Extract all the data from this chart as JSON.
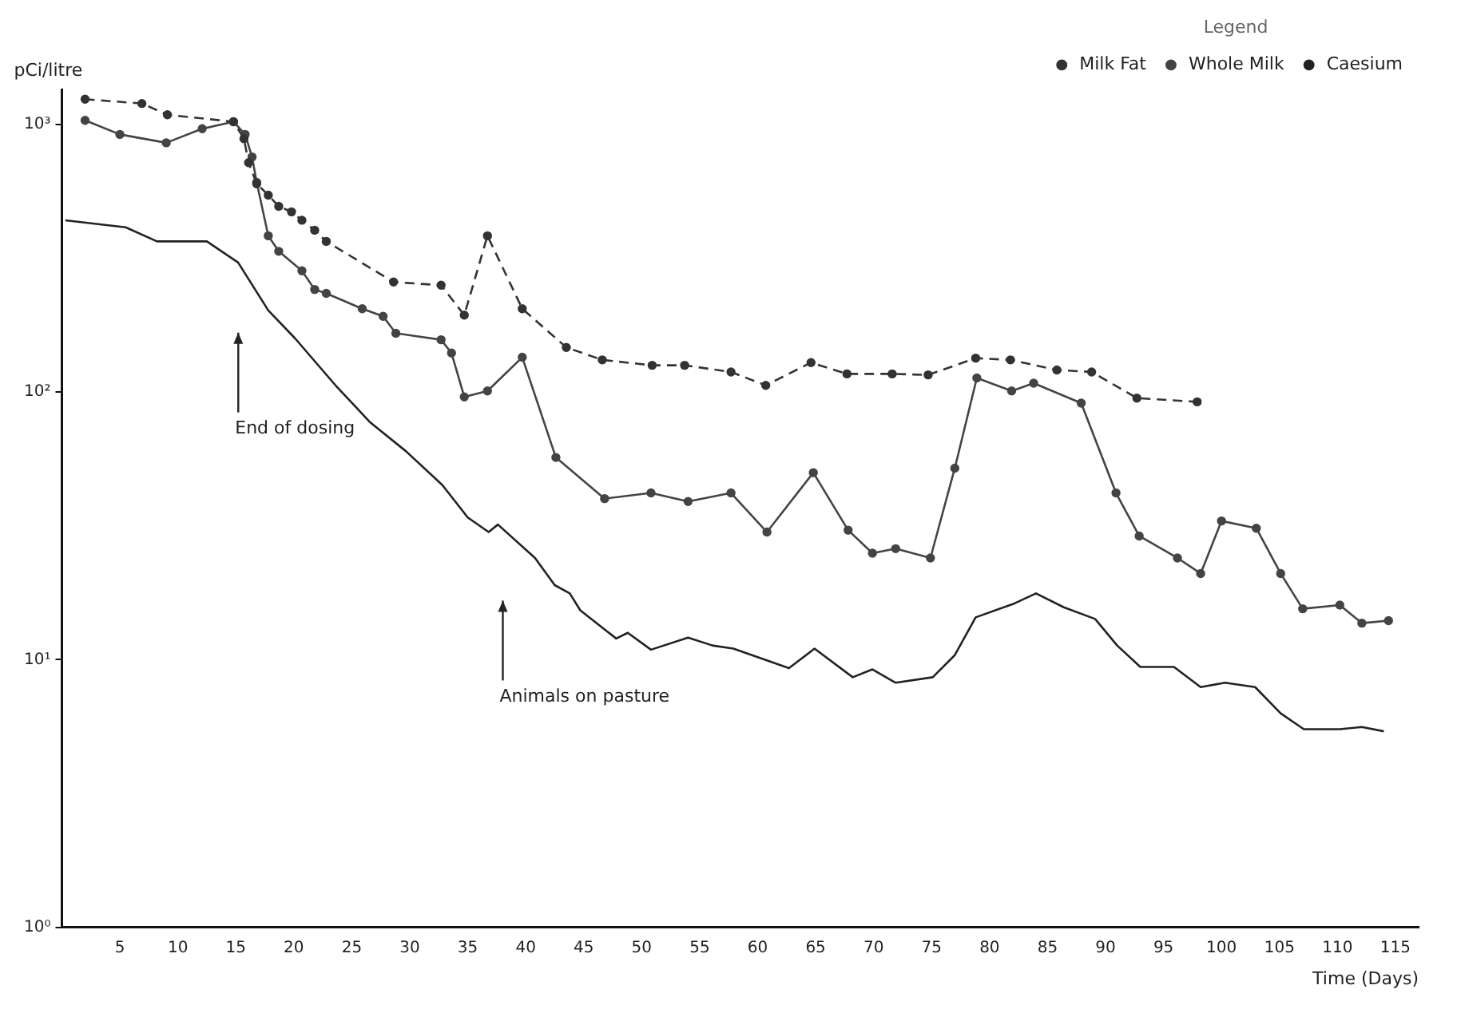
{
  "chart_data": {
    "type": "line",
    "xlabel": "Time (Days)",
    "ylabel": "pCi/litre",
    "legend_title": "Legend",
    "legend": "top",
    "log": "y",
    "grid": false,
    "xlim": [
      0,
      117
    ],
    "xticks": [
      5,
      10,
      15,
      20,
      25,
      30,
      35,
      40,
      45,
      50,
      55,
      60,
      65,
      70,
      75,
      80,
      85,
      90,
      95,
      100,
      105,
      110,
      115
    ],
    "ylim": [
      1,
      1350
    ],
    "yticks": [
      {
        "value": 1,
        "label": "10⁰"
      },
      {
        "value": 10,
        "label": "10¹"
      },
      {
        "value": 100,
        "label": "10²"
      },
      {
        "value": 1000,
        "label": "10³"
      }
    ],
    "annotations": [
      "End of dosing",
      "Animals on pasture"
    ],
    "series": [
      {
        "name": "Milk Fat",
        "color": "#333333",
        "line_style": "dashed",
        "marker": "circle",
        "x": [
          2.0,
          6.9,
          9.1,
          14.8,
          15.7,
          16.1,
          16.8,
          17.8,
          18.7,
          19.8,
          20.7,
          21.8,
          22.8,
          28.6,
          32.7,
          34.7,
          36.7,
          39.7,
          43.5,
          46.6,
          50.9,
          53.7,
          57.7,
          60.7,
          64.6,
          67.7,
          71.6,
          74.7,
          78.8,
          81.8,
          85.8,
          88.8,
          92.7,
          97.9
        ],
        "values": [
          1244,
          1199,
          1088,
          1025,
          886,
          721,
          601,
          545,
          495,
          472,
          439,
          403,
          366,
          258,
          251,
          194,
          384,
          205,
          147,
          132,
          126,
          126,
          119,
          106,
          129,
          117,
          117,
          116,
          134,
          132,
          121,
          119,
          95,
          92
        ]
      },
      {
        "name": "Whole Milk",
        "color": "#444444",
        "line_style": "solid",
        "marker": "circle",
        "x": [
          2.0,
          5.0,
          9.0,
          12.1,
          14.8,
          15.8,
          16.4,
          16.8,
          17.8,
          18.7,
          20.7,
          21.8,
          22.8,
          25.9,
          27.7,
          28.8,
          32.7,
          33.6,
          34.7,
          36.7,
          39.7,
          42.6,
          46.8,
          50.8,
          54.0,
          57.7,
          60.8,
          64.8,
          67.8,
          69.9,
          71.9,
          74.9,
          77.0,
          78.9,
          81.9,
          83.8,
          87.9,
          90.9,
          92.9,
          96.2,
          98.2,
          100.0,
          103.0,
          105.1,
          107.0,
          110.2,
          112.1,
          114.4
        ],
        "values": [
          1037,
          919,
          855,
          965,
          1025,
          919,
          757,
          608,
          384,
          336,
          284,
          242,
          234,
          205,
          192,
          166,
          157,
          140,
          96,
          101,
          135,
          57,
          40,
          42,
          39,
          42,
          30,
          50,
          30.5,
          25,
          26,
          24,
          52,
          113,
          101,
          108,
          91,
          42,
          29,
          24,
          21,
          33,
          31,
          21,
          15.5,
          16,
          13.7,
          14
        ]
      },
      {
        "name": "Caesium",
        "color": "#222222",
        "line_style": "solid",
        "marker": "none",
        "x": [
          0.3,
          5.5,
          8.2,
          12.5,
          15.2,
          17.8,
          20.1,
          23.6,
          26.6,
          29.7,
          32.8,
          35.0,
          36.8,
          37.6,
          40.8,
          42.5,
          43.8,
          44.7,
          47.8,
          48.8,
          50.8,
          54.0,
          56.1,
          57.9,
          62.7,
          64.9,
          68.2,
          69.9,
          71.9,
          75.1,
          77.0,
          78.8,
          82.1,
          84.0,
          86.4,
          89.1,
          91.0,
          93.0,
          95.9,
          98.2,
          100.3,
          102.9,
          105.1,
          107.1,
          110.2,
          112.1,
          114.0
        ],
        "values": [
          439,
          413,
          366,
          366,
          305,
          202,
          159,
          106,
          77,
          60,
          45,
          34,
          30,
          32,
          24,
          19,
          17.7,
          15.3,
          12,
          12.6,
          10.9,
          12.1,
          11.3,
          11,
          9.3,
          11,
          8.6,
          9.2,
          8.2,
          8.6,
          10.4,
          14.4,
          16.2,
          17.7,
          15.7,
          14.2,
          11.3,
          9.4,
          9.4,
          7.9,
          8.2,
          7.9,
          6.3,
          5.5,
          5.5,
          5.6,
          5.4
        ]
      }
    ]
  }
}
